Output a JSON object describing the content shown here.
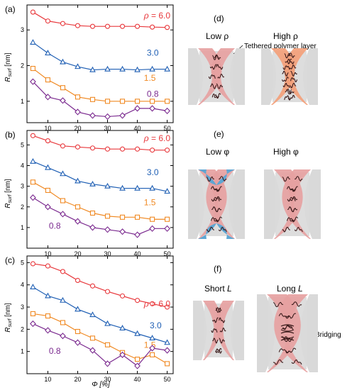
{
  "colors": {
    "red": "#e8383c",
    "blue": "#1f5fb4",
    "orange": "#f08a24",
    "purple": "#7b2a8f",
    "pink": "#e6a1a1",
    "pink_strong": "#f3a07a",
    "blue_fill": "#5ea6d3",
    "gray": "#d9d9d9",
    "chain": "#3a1a1a"
  },
  "chart_data": [
    {
      "type": "line",
      "panel": "(a)",
      "ylabel": "R_surf [nm]",
      "ylabel_main": "R",
      "ylabel_sub": "surf",
      "ylabel_unit": " [nm]",
      "xlabel": "",
      "xlim": [
        3,
        52
      ],
      "ylim": [
        0.4,
        3.7
      ],
      "xticks": [
        10,
        20,
        30,
        40,
        50
      ],
      "yticks": [
        1,
        2,
        3
      ],
      "x": [
        5,
        10,
        15,
        20,
        25,
        30,
        35,
        40,
        45,
        50
      ],
      "series": [
        {
          "name": "ρ = 6.0",
          "marker": "circle",
          "color": "#e8383c",
          "values": [
            3.5,
            3.25,
            3.18,
            3.12,
            3.1,
            3.1,
            3.1,
            3.1,
            3.08,
            3.07
          ]
        },
        {
          "name": "3.0",
          "marker": "triangle",
          "color": "#1f5fb4",
          "values": [
            2.65,
            2.35,
            2.1,
            1.97,
            1.88,
            1.9,
            1.9,
            1.88,
            1.9,
            1.9
          ]
        },
        {
          "name": "1.5",
          "marker": "square",
          "color": "#f08a24",
          "values": [
            1.92,
            1.6,
            1.38,
            1.12,
            1.05,
            1.0,
            1.0,
            1.0,
            1.0,
            1.0
          ]
        },
        {
          "name": "0.8",
          "marker": "diamond",
          "color": "#7b2a8f",
          "values": [
            1.55,
            1.12,
            1.02,
            0.7,
            0.6,
            0.57,
            0.6,
            0.8,
            0.8,
            0.73
          ]
        }
      ]
    },
    {
      "type": "line",
      "panel": "(b)",
      "ylabel": "R_surf [nm]",
      "ylabel_main": "R",
      "ylabel_sub": "surf",
      "ylabel_unit": " [nm]",
      "xlabel": "",
      "xlim": [
        3,
        52
      ],
      "ylim": [
        0.0,
        5.7
      ],
      "xticks": [
        10,
        20,
        30,
        40,
        50
      ],
      "yticks": [
        1,
        2,
        3,
        4,
        5
      ],
      "x": [
        5,
        10,
        15,
        20,
        25,
        30,
        35,
        40,
        45,
        50
      ],
      "series": [
        {
          "name": "ρ = 6.0",
          "marker": "circle",
          "color": "#e8383c",
          "values": [
            5.45,
            5.2,
            4.95,
            4.9,
            4.85,
            4.8,
            4.8,
            4.8,
            4.75,
            4.75
          ]
        },
        {
          "name": "3.0",
          "marker": "triangle",
          "color": "#1f5fb4",
          "values": [
            4.2,
            3.9,
            3.6,
            3.25,
            3.1,
            3.0,
            2.9,
            2.9,
            2.9,
            2.75
          ]
        },
        {
          "name": "1.5",
          "marker": "square",
          "color": "#f08a24",
          "values": [
            3.2,
            2.8,
            2.3,
            2.0,
            1.7,
            1.55,
            1.5,
            1.5,
            1.4,
            1.4
          ]
        },
        {
          "name": "0.8",
          "marker": "diamond",
          "color": "#7b2a8f",
          "values": [
            2.45,
            2.0,
            1.65,
            1.3,
            1.0,
            0.9,
            0.8,
            0.65,
            0.95,
            0.95
          ]
        }
      ]
    },
    {
      "type": "line",
      "panel": "(c)",
      "ylabel": "R_surf [nm]",
      "ylabel_main": "R",
      "ylabel_sub": "surf",
      "ylabel_unit": " [nm]",
      "xlabel": "Φ [%]",
      "xlim": [
        3,
        52
      ],
      "ylim": [
        0.0,
        5.3
      ],
      "xticks": [
        10,
        20,
        30,
        40,
        50
      ],
      "yticks": [
        1,
        2,
        3,
        4,
        5
      ],
      "x": [
        5,
        10,
        15,
        20,
        25,
        30,
        35,
        40,
        45,
        50
      ],
      "series": [
        {
          "name": "ρ = 6.0",
          "marker": "circle",
          "color": "#e8383c",
          "values": [
            4.95,
            4.85,
            4.6,
            4.2,
            3.95,
            3.7,
            3.5,
            3.3,
            3.15,
            3.0
          ]
        },
        {
          "name": "3.0",
          "marker": "triangle",
          "color": "#1f5fb4",
          "values": [
            3.9,
            3.5,
            3.3,
            2.9,
            2.65,
            2.25,
            2.05,
            1.8,
            1.6,
            1.4
          ]
        },
        {
          "name": "1.5",
          "marker": "square",
          "color": "#f08a24",
          "values": [
            2.7,
            2.6,
            2.3,
            1.9,
            1.6,
            1.3,
            0.95,
            0.65,
            0.85,
            0.45
          ]
        },
        {
          "name": "0.8",
          "marker": "diamond",
          "color": "#7b2a8f",
          "values": [
            2.25,
            1.95,
            1.7,
            1.4,
            1.05,
            0.45,
            0.85,
            0.35,
            1.15,
            1.05
          ]
        }
      ]
    }
  ],
  "diagrams": {
    "d": {
      "panel": "(d)",
      "left_label": "Low ρ",
      "right_label": "High ρ",
      "note": "Tethered polymer layer"
    },
    "e": {
      "panel": "(e)",
      "left_label": "Low φ",
      "right_label": "High φ"
    },
    "f": {
      "panel": "(f)",
      "left_label": "Short ",
      "left_var": "L",
      "right_label": "Long ",
      "right_var": "L",
      "note": "Bridging"
    }
  }
}
